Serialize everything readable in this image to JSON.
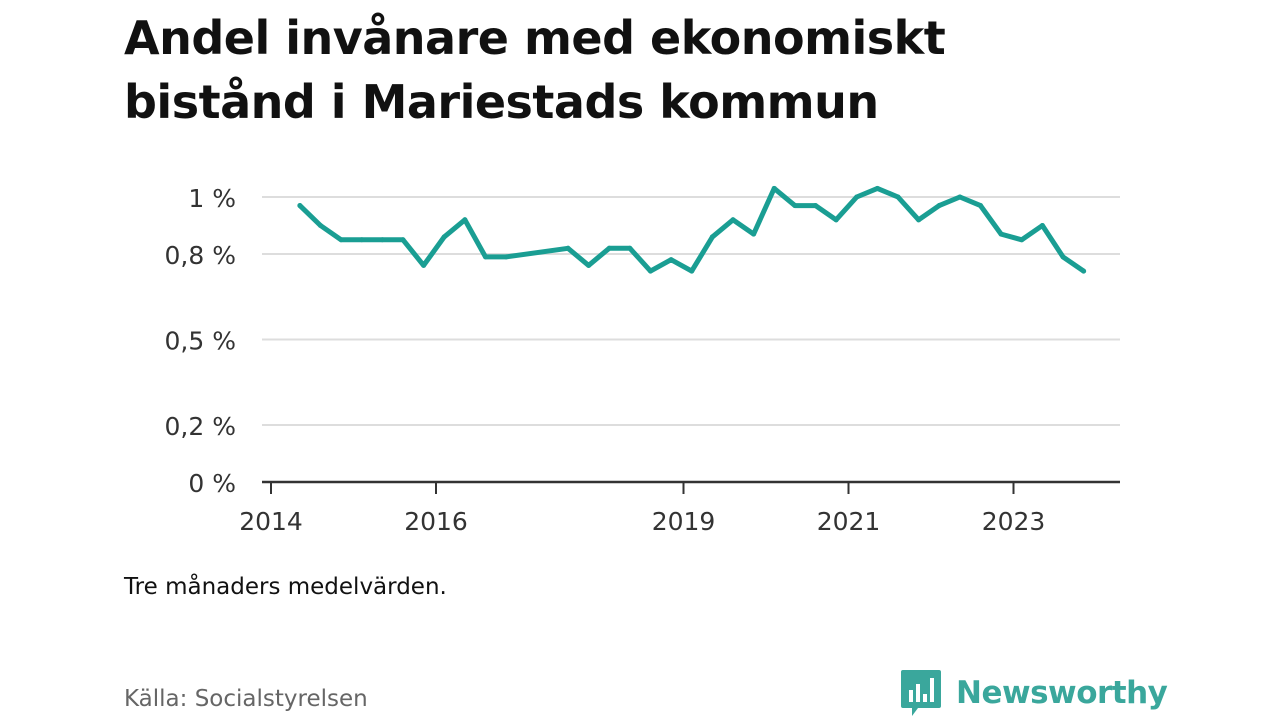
{
  "title": "Andel invånare med ekonomiskt bistånd i Mariestads kommun",
  "note": "Tre månaders medelvärden.",
  "source": "Källa: Socialstyrelsen",
  "brand": {
    "name": "Newsworthy",
    "icon": "newsworthy-logo-icon",
    "color": "#3aa79c"
  },
  "chart_data": {
    "type": "line",
    "title": "Andel invånare med ekonomiskt bistånd i Mariestads kommun",
    "xlabel": "",
    "ylabel": "",
    "xlim": [
      2014,
      2024.4
    ],
    "ylim": [
      0,
      1.05
    ],
    "y_ticks": [
      0,
      0.2,
      0.5,
      0.8,
      1
    ],
    "y_tick_labels": [
      "0 %",
      "0,2 %",
      "0,5 %",
      "0,8 %",
      "1 %"
    ],
    "x_ticks": [
      2014,
      2016,
      2019,
      2021,
      2023
    ],
    "x_tick_labels": [
      "2014",
      "2016",
      "2019",
      "2021",
      "2023"
    ],
    "grid": "horizontal",
    "line_color": "#1a9e93",
    "series": [
      {
        "x": [
          2014.35,
          2014.6,
          2014.85,
          2015.1,
          2015.35,
          2015.6,
          2015.85,
          2016.1,
          2016.35,
          2016.6,
          2016.85,
          2017.6,
          2017.85,
          2018.1,
          2018.35,
          2018.6,
          2018.85,
          2019.1,
          2019.35,
          2019.6,
          2019.85,
          2020.1,
          2020.35,
          2020.6,
          2020.85,
          2021.1,
          2021.35,
          2021.6,
          2021.85,
          2022.1,
          2022.35,
          2022.6,
          2022.85,
          2023.1,
          2023.35,
          2023.6,
          2023.85
        ],
        "y": [
          0.97,
          0.9,
          0.85,
          0.85,
          0.85,
          0.85,
          0.76,
          0.86,
          0.92,
          0.79,
          0.79,
          0.82,
          0.76,
          0.82,
          0.82,
          0.74,
          0.78,
          0.74,
          0.86,
          0.92,
          0.87,
          1.03,
          0.97,
          0.97,
          0.92,
          1.0,
          1.03,
          1.0,
          0.92,
          0.97,
          1.0,
          0.97,
          0.87,
          0.85,
          0.9,
          0.79,
          0.74
        ]
      }
    ]
  }
}
